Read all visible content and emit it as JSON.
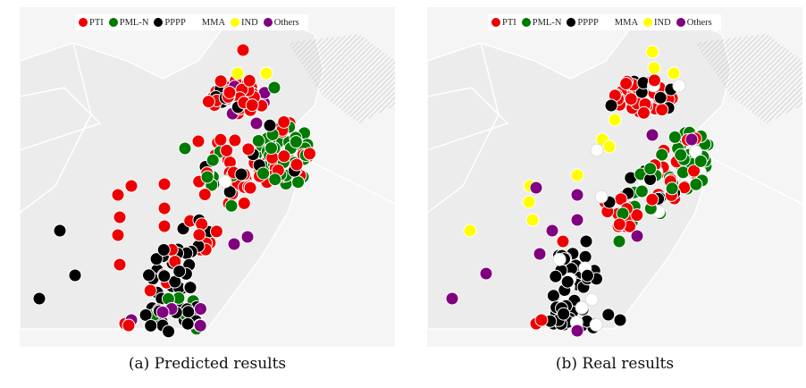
{
  "legend": [
    {
      "label": "PTI",
      "color": "#ee0000"
    },
    {
      "label": "PML-N",
      "color": "#007a00"
    },
    {
      "label": "PPPP",
      "color": "#000000"
    },
    {
      "label": "MMA",
      "color": null
    },
    {
      "label": "IND",
      "color": "#ffff00"
    },
    {
      "label": "Others",
      "color": "#800080"
    }
  ],
  "panels": [
    {
      "caption": "(a) Predicted results"
    },
    {
      "caption": "(b) Real results"
    }
  ],
  "colors": {
    "land": "#ececec",
    "background": "#f5f5f5",
    "border": "#ffffff",
    "hatch": "#c8c8c8",
    "point_stroke": "#ffffff"
  }
}
